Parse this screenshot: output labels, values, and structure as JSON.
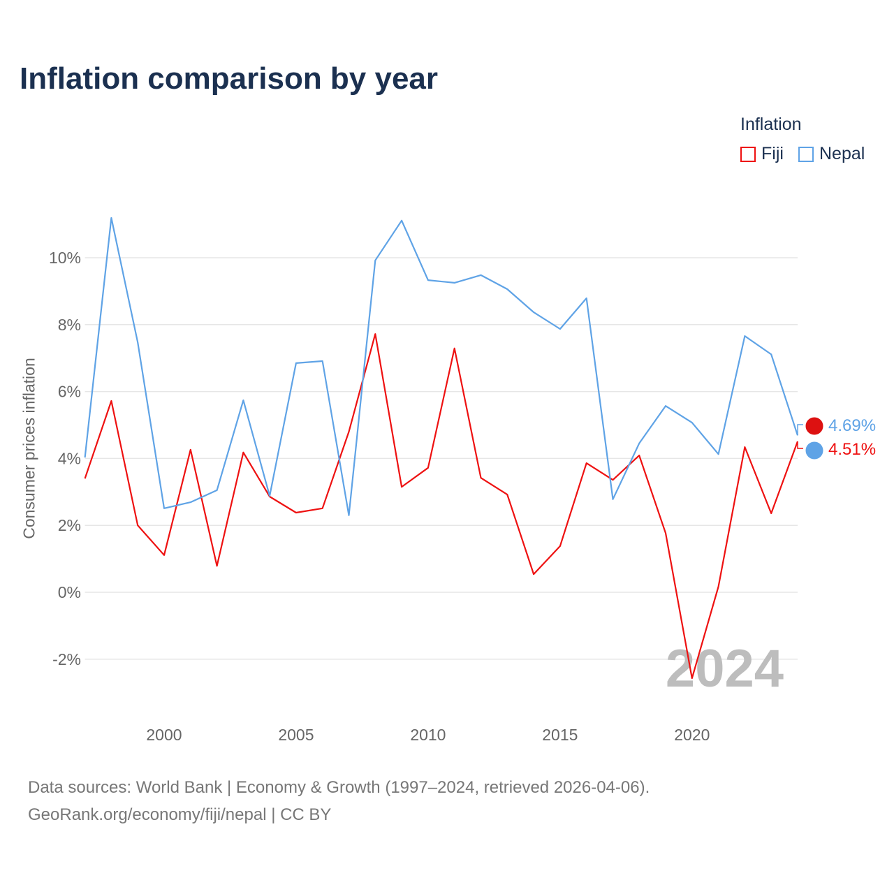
{
  "chart_data": {
    "type": "line",
    "title": "Inflation comparison by year",
    "xlabel": "",
    "ylabel": "Consumer prices inflation",
    "legend_title": "Inflation",
    "legend_position": "top-right",
    "x": [
      1997,
      1998,
      1999,
      2000,
      2001,
      2002,
      2003,
      2004,
      2005,
      2006,
      2007,
      2008,
      2009,
      2010,
      2011,
      2012,
      2013,
      2014,
      2015,
      2016,
      2017,
      2018,
      2019,
      2020,
      2021,
      2022,
      2023,
      2024
    ],
    "series": [
      {
        "name": "Fiji",
        "color": "#ee1111",
        "end_label": "4.51%",
        "values": [
          3.4,
          5.72,
          2.0,
          1.11,
          4.26,
          0.79,
          4.18,
          2.86,
          2.38,
          2.51,
          4.8,
          7.72,
          3.15,
          3.72,
          7.29,
          3.42,
          2.92,
          0.54,
          1.38,
          3.86,
          3.36,
          4.09,
          1.77,
          -2.57,
          0.17,
          4.34,
          2.36,
          4.51
        ]
      },
      {
        "name": "Nepal",
        "color": "#5fa3e6",
        "end_label": "4.69%",
        "values": [
          4.03,
          11.19,
          7.47,
          2.51,
          2.69,
          3.05,
          5.74,
          2.88,
          6.85,
          6.91,
          2.3,
          9.92,
          11.11,
          9.33,
          9.25,
          9.48,
          9.06,
          8.37,
          7.87,
          8.79,
          2.78,
          4.45,
          5.57,
          5.07,
          4.13,
          7.66,
          7.11,
          4.69
        ]
      }
    ],
    "xlim": [
      1997,
      2024
    ],
    "ylim": [
      -3,
      12
    ],
    "x_ticks": [
      2000,
      2005,
      2010,
      2015,
      2020
    ],
    "x_tick_labels": [
      "2000",
      "2005",
      "2010",
      "2015",
      "2020"
    ],
    "y_ticks": [
      -2,
      0,
      2,
      4,
      6,
      8,
      10
    ],
    "y_tick_labels": [
      "-2%",
      "0%",
      "2%",
      "4%",
      "6%",
      "8%",
      "10%"
    ],
    "grid": true,
    "year_watermark": "2024"
  },
  "footer": {
    "source_line1": "Data sources: World Bank | Economy & Growth (1997–2024, retrieved 2026-04-06).",
    "source_line2": "GeoRank.org/economy/fiji/nepal | CC BY"
  }
}
